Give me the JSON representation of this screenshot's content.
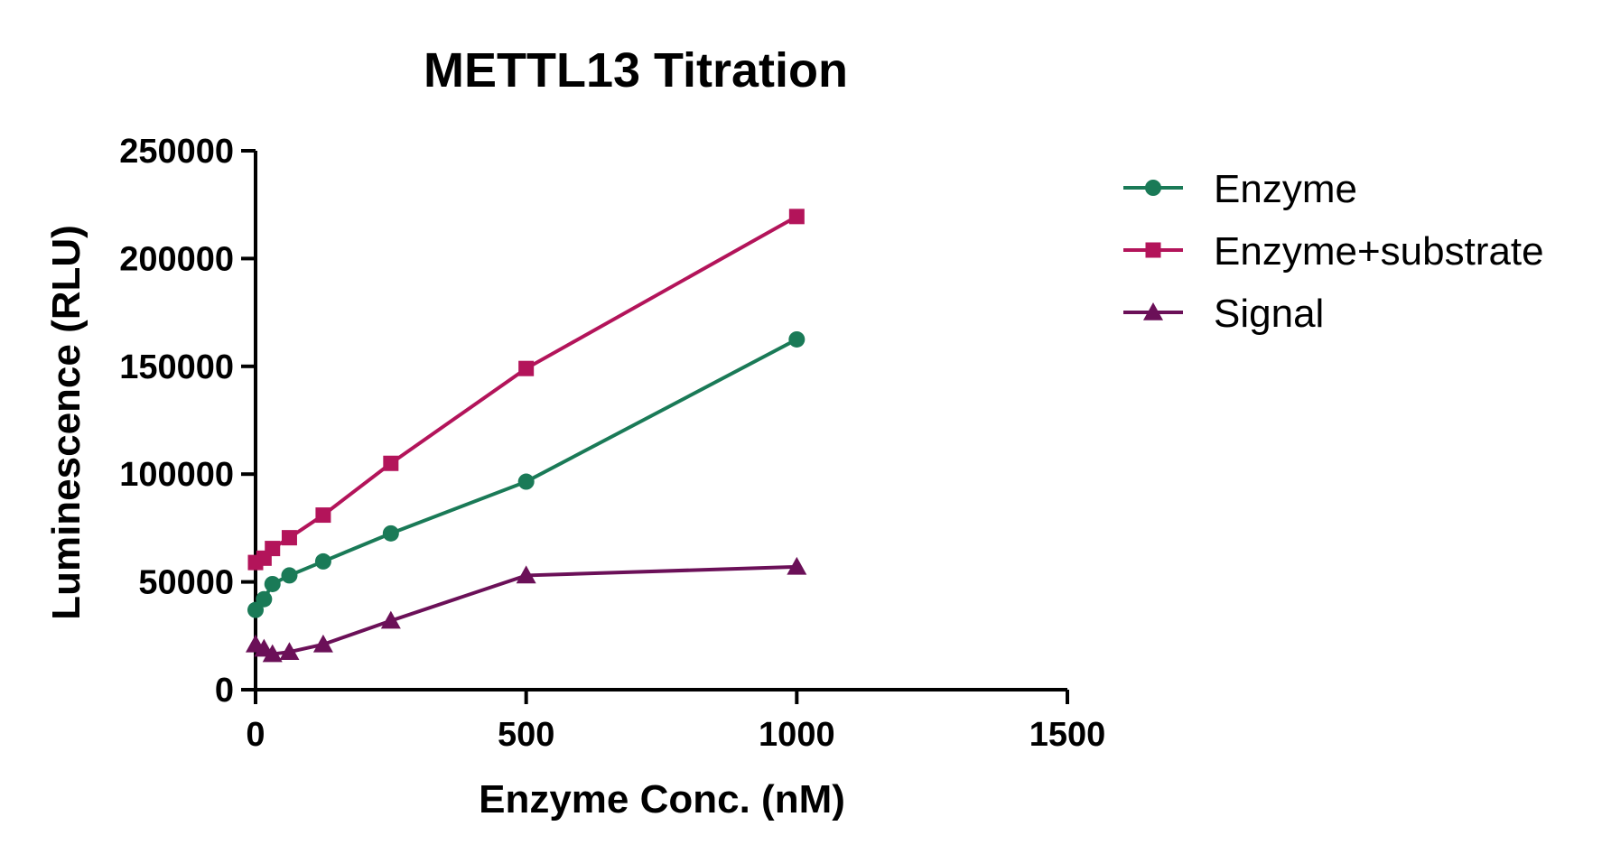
{
  "chart_data": {
    "type": "line",
    "title": "METTL13 Titration",
    "xlabel": "Enzyme Conc. (nM)",
    "ylabel": "Luminescence (RLU)",
    "xlim": [
      0,
      1500
    ],
    "ylim": [
      0,
      250000
    ],
    "x_ticks": [
      "0",
      "500",
      "1000",
      "1500"
    ],
    "y_ticks": [
      "0",
      "50000",
      "100000",
      "150000",
      "200000",
      "250000"
    ],
    "x_tick_values": [
      0,
      500,
      1000,
      1500
    ],
    "y_tick_values": [
      0,
      50000,
      100000,
      150000,
      200000,
      250000
    ],
    "grid": false,
    "legend_position": "right",
    "series": [
      {
        "name": "Enzyme",
        "color": "#1a7a57",
        "marker": "circle",
        "x": [
          0,
          15.6,
          31.25,
          62.5,
          125,
          250,
          500,
          1000
        ],
        "y": [
          37000,
          42000,
          49000,
          53000,
          59500,
          72500,
          96500,
          162500
        ]
      },
      {
        "name": "Enzyme+substrate",
        "color": "#b3145a",
        "marker": "square",
        "x": [
          0,
          15.6,
          31.25,
          62.5,
          125,
          250,
          500,
          1000
        ],
        "y": [
          59000,
          61000,
          65500,
          70500,
          81000,
          105000,
          149000,
          219500
        ]
      },
      {
        "name": "Signal",
        "color": "#6b1058",
        "marker": "triangle",
        "x": [
          0,
          15.6,
          31.25,
          62.5,
          125,
          250,
          500,
          1000
        ],
        "y": [
          21000,
          19000,
          16500,
          17500,
          21000,
          32000,
          53000,
          57000
        ]
      }
    ]
  }
}
